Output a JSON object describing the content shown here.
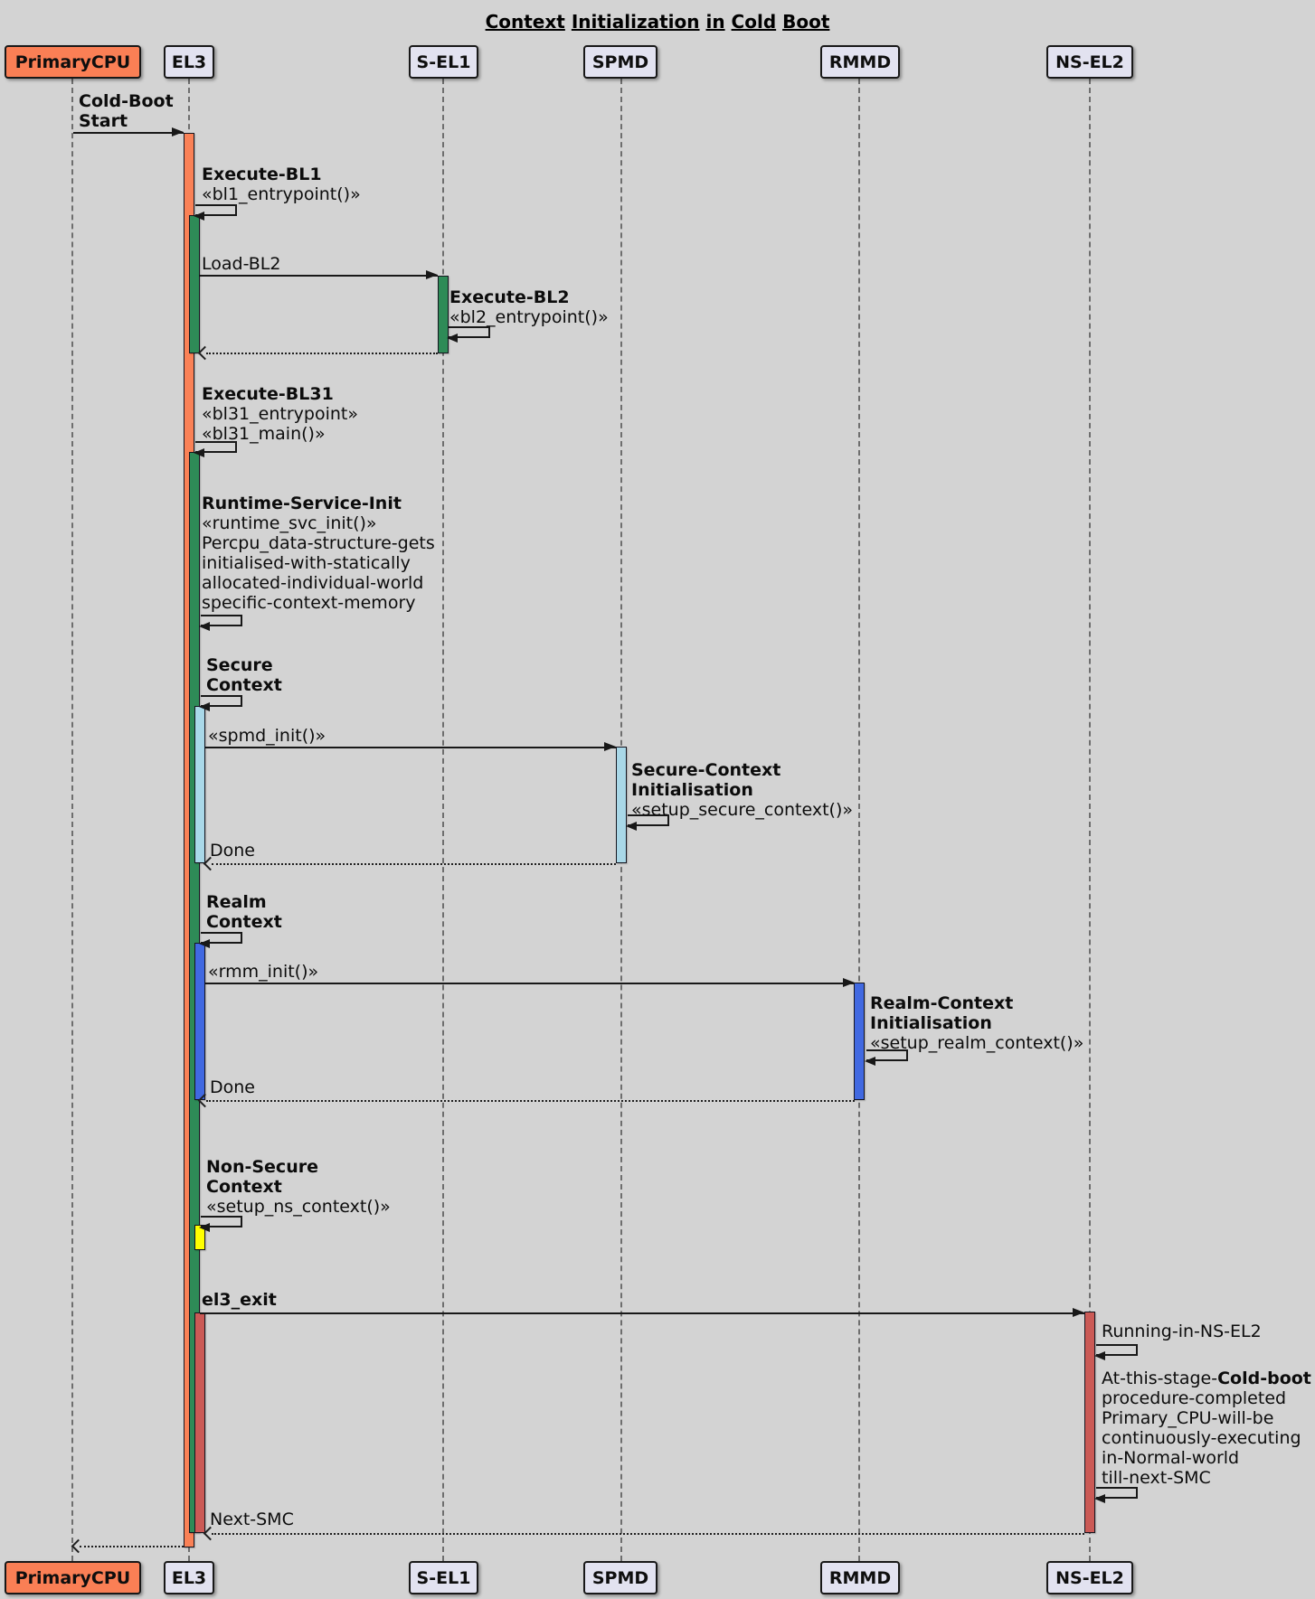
{
  "title": "Context Initialization in Cold Boot",
  "participants": [
    {
      "label": "PrimaryCPU"
    },
    {
      "label": "EL3"
    },
    {
      "label": "S-EL1"
    },
    {
      "label": "SPMD"
    },
    {
      "label": "RMMD"
    },
    {
      "label": "NS-EL2"
    }
  ],
  "colors": {
    "background": "#d3d3d3",
    "participant_fill": "#e2e2f0",
    "primary_cpu_fill": "#fa7f55",
    "activation_orange": "#fa8156",
    "activation_green": "#2e8b57",
    "activation_lightblue": "#a9d8e8",
    "activation_blue": "#4169e1",
    "activation_yellow": "#ffff00",
    "activation_red": "#cb5a56",
    "arrow": "#181818"
  },
  "messages": {
    "cold_boot": {
      "line1": "Cold-Boot",
      "line2": "Start"
    },
    "execute_bl1": {
      "line1": "Execute-BL1",
      "line2": "«bl1_entrypoint()»"
    },
    "load_bl2": {
      "label": "Load-BL2"
    },
    "execute_bl2": {
      "line1": "Execute-BL2",
      "line2": "«bl2_entrypoint()»"
    },
    "execute_bl31": {
      "line1": "Execute-BL31",
      "line2": "«bl31_entrypoint»",
      "line3": "«bl31_main()»"
    },
    "runtime_service_init": {
      "line1": "Runtime-Service-Init",
      "line2": "«runtime_svc_init()»",
      "line3": "Percpu_data-structure-gets",
      "line4": "initialised-with-statically",
      "line5": "allocated-individual-world",
      "line6": "specific-context-memory"
    },
    "secure_context": {
      "line1": "Secure",
      "line2": "Context"
    },
    "spmd_init": {
      "label": "«spmd_init()»"
    },
    "secure_context_init": {
      "line1": "Secure-Context",
      "line2": "Initialisation",
      "line3": "«setup_secure_context()»"
    },
    "done_spmd": {
      "label": "Done"
    },
    "realm_context": {
      "line1": "Realm",
      "line2": "Context"
    },
    "rmm_init": {
      "label": "«rmm_init()»"
    },
    "realm_context_init": {
      "line1": "Realm-Context",
      "line2": "Initialisation",
      "line3": "«setup_realm_context()»"
    },
    "done_rmmd": {
      "label": "Done"
    },
    "non_secure_context": {
      "line1": "Non-Secure",
      "line2": "Context",
      "line3": "«setup_ns_context()»"
    },
    "el3_exit": {
      "label": "el3_exit"
    },
    "running_in_ns_el2": {
      "label": "Running-in-NS-EL2"
    },
    "cold_boot_complete": {
      "line1_prefix": "At-this-stage-",
      "line1_bold": "Cold-boot",
      "line2": "procedure-completed",
      "line3": "Primary_CPU-will-be",
      "line4": "continuously-executing",
      "line5": "in-Normal-world",
      "line6": "till-next-SMC"
    },
    "next_smc": {
      "label": "Next-SMC"
    }
  }
}
